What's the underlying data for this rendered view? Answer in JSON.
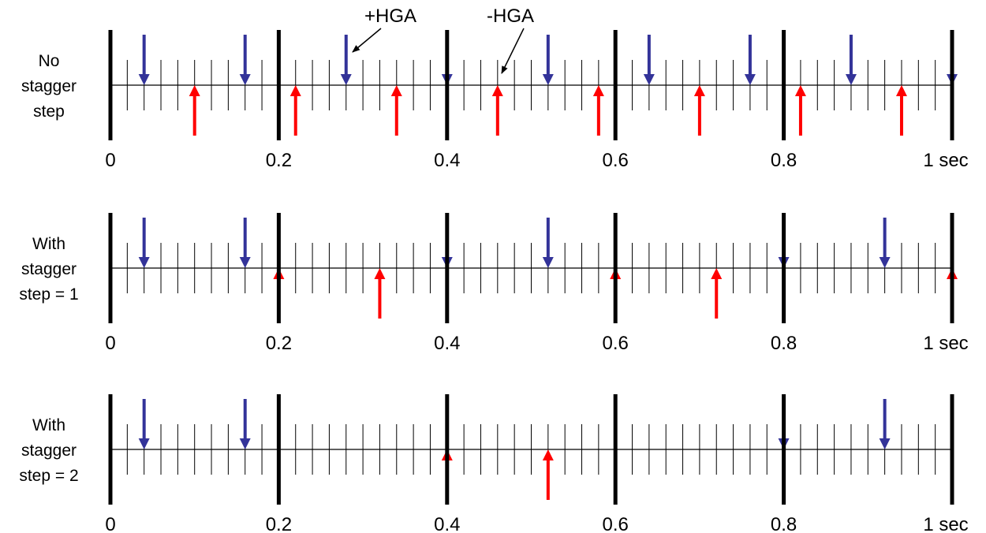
{
  "colors": {
    "plus_arrow": "#333399",
    "minus_arrow": "#ff0000",
    "axis": "#000000"
  },
  "annotations": {
    "plus_hga": "+HGA",
    "minus_hga": "-HGA"
  },
  "tick_labels": [
    "0",
    "0.2",
    "0.4",
    "0.6",
    "0.8",
    "1 sec"
  ],
  "time_range": [
    0,
    1
  ],
  "major_tick_interval": 0.2,
  "minor_tick_interval": 0.02,
  "rows": [
    {
      "label_lines": [
        "No",
        "stagger",
        "step"
      ],
      "plus_hga_times": [
        0.04,
        0.16,
        0.28,
        0.4,
        0.52,
        0.64,
        0.76,
        0.88,
        1.0
      ],
      "minus_hga_times": [
        0.1,
        0.22,
        0.34,
        0.46,
        0.58,
        0.7,
        0.82,
        0.94
      ]
    },
    {
      "label_lines": [
        "With",
        "stagger",
        "step = 1"
      ],
      "plus_hga_times": [
        0.04,
        0.16,
        0.4,
        0.52,
        0.8,
        0.92
      ],
      "minus_hga_times": [
        0.2,
        0.32,
        0.6,
        0.72,
        1.0
      ]
    },
    {
      "label_lines": [
        "With",
        "stagger",
        "step = 2"
      ],
      "plus_hga_times": [
        0.04,
        0.16,
        0.8,
        0.92
      ],
      "minus_hga_times": [
        0.4,
        0.52
      ]
    }
  ]
}
